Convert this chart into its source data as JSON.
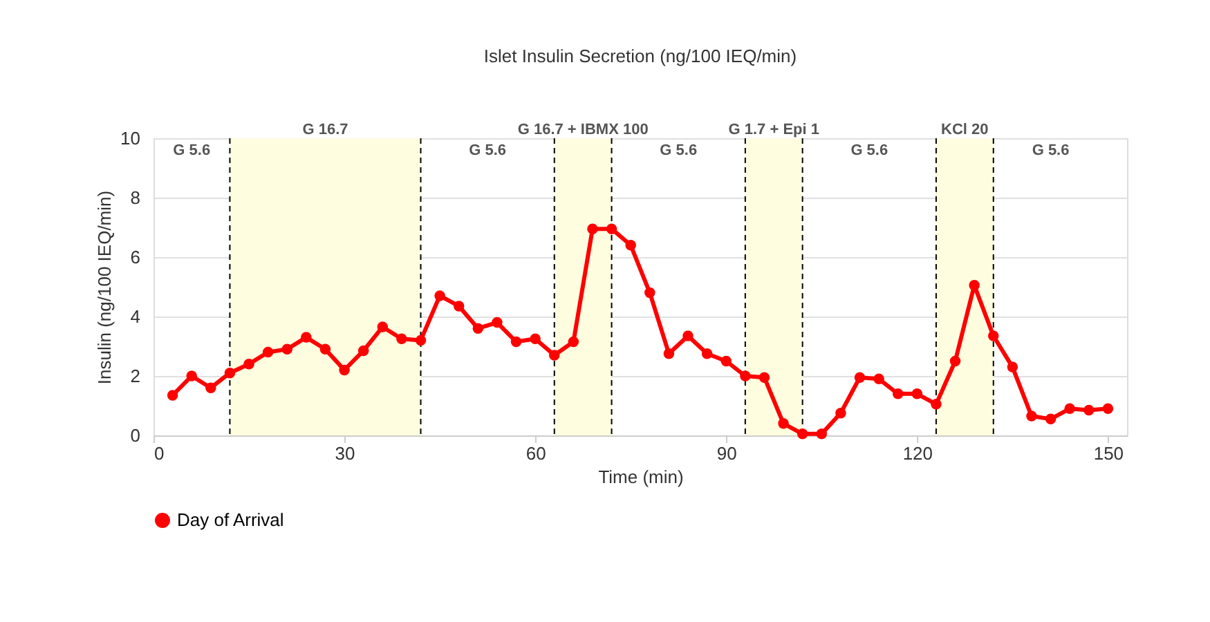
{
  "chart_data": {
    "type": "line",
    "title": "Islet Insulin Secretion (ng/100 IEQ/min)",
    "xlabel": "Time (min)",
    "ylabel": "Insulin (ng/100 IEQ/min)",
    "x": [
      3,
      6,
      9,
      12,
      15,
      18,
      21,
      24,
      27,
      30,
      33,
      36,
      39,
      42,
      45,
      48,
      51,
      54,
      57,
      60,
      63,
      66,
      69,
      72,
      75,
      78,
      81,
      84,
      87,
      90,
      93,
      96,
      99,
      102,
      105,
      108,
      111,
      114,
      117,
      120,
      123,
      126,
      129,
      132,
      135,
      138,
      141,
      144,
      147,
      150
    ],
    "series": [
      {
        "name": "Day of Arrival",
        "color": "#ff0000",
        "values": [
          1.35,
          2.0,
          1.6,
          2.1,
          2.4,
          2.8,
          2.9,
          3.3,
          2.9,
          2.2,
          2.85,
          3.65,
          3.25,
          3.2,
          4.7,
          4.35,
          3.6,
          3.8,
          3.15,
          3.25,
          2.7,
          3.15,
          6.95,
          6.95,
          6.4,
          4.8,
          2.75,
          3.35,
          2.75,
          2.5,
          2.0,
          1.95,
          0.4,
          0.05,
          0.05,
          0.75,
          1.95,
          1.9,
          1.4,
          1.4,
          1.05,
          2.5,
          5.05,
          3.35,
          2.3,
          0.65,
          0.55,
          0.9,
          0.85,
          0.9
        ]
      }
    ],
    "bands": [
      {
        "axis": "x",
        "from": 12,
        "to": 42,
        "label": "G 16.7",
        "color": "#fefde0"
      },
      {
        "axis": "x",
        "from": 63,
        "to": 72,
        "label": "G 16.7 + IBMX 100",
        "color": "#fefde0"
      },
      {
        "axis": "x",
        "from": 93,
        "to": 102,
        "label": "G 1.7 + Epi 1",
        "color": "#fefde0"
      },
      {
        "axis": "x",
        "from": 123,
        "to": 132,
        "label": "KCl 20",
        "color": "#fefde0"
      }
    ],
    "ref_lines": [
      {
        "axis": "x",
        "value": 12,
        "color": "#000000",
        "line_style": "dashed"
      },
      {
        "axis": "x",
        "value": 42,
        "color": "#000000",
        "line_style": "dashed"
      },
      {
        "axis": "x",
        "value": 63,
        "color": "#000000",
        "line_style": "dashed"
      },
      {
        "axis": "x",
        "value": 72,
        "color": "#000000",
        "line_style": "dashed"
      },
      {
        "axis": "x",
        "value": 93,
        "color": "#000000",
        "line_style": "dashed"
      },
      {
        "axis": "x",
        "value": 102,
        "color": "#000000",
        "line_style": "dashed"
      },
      {
        "axis": "x",
        "value": 123,
        "color": "#000000",
        "line_style": "dashed"
      },
      {
        "axis": "x",
        "value": 132,
        "color": "#000000",
        "line_style": "dashed"
      }
    ],
    "annotations": [
      "G 5.6",
      "G 5.6",
      "G 5.6",
      "G 5.6",
      "G 5.6"
    ],
    "xlim": [
      0,
      153
    ],
    "xticks": [
      0,
      30,
      60,
      90,
      120,
      150
    ],
    "ylim": [
      0,
      10
    ],
    "yticks": [
      0,
      2,
      4,
      6,
      8,
      10
    ],
    "grid": "y",
    "legend": "bottom",
    "marker": "circle",
    "line_style": "solid"
  }
}
